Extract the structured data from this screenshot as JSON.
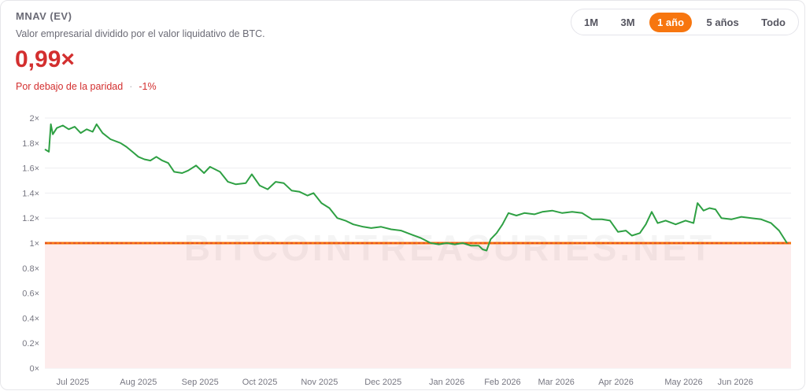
{
  "header": {
    "title": "MNAV (EV)",
    "subtitle": "Valor empresarial dividido por el valor liquidativo de BTC.",
    "value": "0,99×",
    "status_label": "Por debajo de la paridad",
    "separator": "·",
    "status_change": "-1%"
  },
  "range_selector": {
    "options": [
      "1M",
      "3M",
      "1 año",
      "5 años",
      "Todo"
    ],
    "active": "1 año"
  },
  "watermark": "BITCOINTREASURIES.NET",
  "colors": {
    "line": "#2ea043",
    "parity": "#f7760f",
    "parity_dash": "#d32f2f",
    "below_fill": "#fdecec",
    "value": "#d32f2f"
  },
  "chart_data": {
    "type": "line",
    "x_ticks": [
      "Jul 2025",
      "Aug 2025",
      "Sep 2025",
      "Oct 2025",
      "Nov 2025",
      "Dec 2025",
      "Jan 2026",
      "Feb 2026",
      "Mar 2026",
      "Apr 2026",
      "May 2026",
      "Jun 2026"
    ],
    "y_ticks": [
      "0×",
      "0.2×",
      "0.4×",
      "0.6×",
      "0.8×",
      "1×",
      "1.2×",
      "1.4×",
      "1.6×",
      "1.8×",
      "2×"
    ],
    "ylim": [
      0,
      2
    ],
    "x_range": [
      "2025-06-24",
      "2026-07-04"
    ],
    "parity_line": 1,
    "series": [
      {
        "values": [
          [
            "2025-06-24",
            1.75
          ],
          [
            "2025-06-26",
            1.73
          ],
          [
            "2025-06-27",
            1.95
          ],
          [
            "2025-06-28",
            1.87
          ],
          [
            "2025-06-30",
            1.92
          ],
          [
            "2025-07-03",
            1.94
          ],
          [
            "2025-07-06",
            1.91
          ],
          [
            "2025-07-09",
            1.93
          ],
          [
            "2025-07-12",
            1.88
          ],
          [
            "2025-07-15",
            1.91
          ],
          [
            "2025-07-18",
            1.89
          ],
          [
            "2025-07-20",
            1.95
          ],
          [
            "2025-07-23",
            1.88
          ],
          [
            "2025-07-27",
            1.83
          ],
          [
            "2025-08-01",
            1.8
          ],
          [
            "2025-08-04",
            1.77
          ],
          [
            "2025-08-07",
            1.73
          ],
          [
            "2025-08-10",
            1.69
          ],
          [
            "2025-08-13",
            1.67
          ],
          [
            "2025-08-16",
            1.66
          ],
          [
            "2025-08-19",
            1.69
          ],
          [
            "2025-08-22",
            1.66
          ],
          [
            "2025-08-25",
            1.64
          ],
          [
            "2025-08-28",
            1.57
          ],
          [
            "2025-09-01",
            1.56
          ],
          [
            "2025-09-04",
            1.58
          ],
          [
            "2025-09-08",
            1.62
          ],
          [
            "2025-09-12",
            1.56
          ],
          [
            "2025-09-15",
            1.61
          ],
          [
            "2025-09-20",
            1.57
          ],
          [
            "2025-09-24",
            1.49
          ],
          [
            "2025-09-28",
            1.47
          ],
          [
            "2025-10-03",
            1.48
          ],
          [
            "2025-10-06",
            1.55
          ],
          [
            "2025-10-10",
            1.46
          ],
          [
            "2025-10-14",
            1.43
          ],
          [
            "2025-10-18",
            1.49
          ],
          [
            "2025-10-22",
            1.48
          ],
          [
            "2025-10-26",
            1.42
          ],
          [
            "2025-10-30",
            1.41
          ],
          [
            "2025-11-03",
            1.38
          ],
          [
            "2025-11-06",
            1.4
          ],
          [
            "2025-11-10",
            1.32
          ],
          [
            "2025-11-14",
            1.28
          ],
          [
            "2025-11-18",
            1.2
          ],
          [
            "2025-11-22",
            1.18
          ],
          [
            "2025-11-26",
            1.15
          ],
          [
            "2025-12-01",
            1.13
          ],
          [
            "2025-12-05",
            1.12
          ],
          [
            "2025-12-10",
            1.13
          ],
          [
            "2025-12-15",
            1.11
          ],
          [
            "2025-12-20",
            1.1
          ],
          [
            "2025-12-25",
            1.07
          ],
          [
            "2025-12-30",
            1.04
          ],
          [
            "2026-01-04",
            1.0
          ],
          [
            "2026-01-08",
            0.99
          ],
          [
            "2026-01-12",
            1.0
          ],
          [
            "2026-01-16",
            0.99
          ],
          [
            "2026-01-20",
            1.0
          ],
          [
            "2026-01-24",
            0.98
          ],
          [
            "2026-01-28",
            0.98
          ],
          [
            "2026-01-30",
            0.95
          ],
          [
            "2026-02-01",
            0.94
          ],
          [
            "2026-02-03",
            1.03
          ],
          [
            "2026-02-06",
            1.08
          ],
          [
            "2026-02-09",
            1.15
          ],
          [
            "2026-02-12",
            1.24
          ],
          [
            "2026-02-16",
            1.22
          ],
          [
            "2026-02-20",
            1.24
          ],
          [
            "2026-02-25",
            1.23
          ],
          [
            "2026-03-01",
            1.25
          ],
          [
            "2026-03-06",
            1.26
          ],
          [
            "2026-03-11",
            1.24
          ],
          [
            "2026-03-16",
            1.25
          ],
          [
            "2026-03-21",
            1.24
          ],
          [
            "2026-03-26",
            1.19
          ],
          [
            "2026-03-31",
            1.19
          ],
          [
            "2026-04-04",
            1.18
          ],
          [
            "2026-04-08",
            1.09
          ],
          [
            "2026-04-12",
            1.1
          ],
          [
            "2026-04-15",
            1.06
          ],
          [
            "2026-04-19",
            1.08
          ],
          [
            "2026-04-22",
            1.15
          ],
          [
            "2026-04-25",
            1.25
          ],
          [
            "2026-04-28",
            1.16
          ],
          [
            "2026-05-02",
            1.18
          ],
          [
            "2026-05-07",
            1.15
          ],
          [
            "2026-05-12",
            1.18
          ],
          [
            "2026-05-16",
            1.16
          ],
          [
            "2026-05-18",
            1.32
          ],
          [
            "2026-05-21",
            1.26
          ],
          [
            "2026-05-24",
            1.28
          ],
          [
            "2026-05-27",
            1.27
          ],
          [
            "2026-05-30",
            1.2
          ],
          [
            "2026-06-04",
            1.19
          ],
          [
            "2026-06-09",
            1.21
          ],
          [
            "2026-06-14",
            1.2
          ],
          [
            "2026-06-19",
            1.19
          ],
          [
            "2026-06-24",
            1.16
          ],
          [
            "2026-06-28",
            1.1
          ],
          [
            "2026-07-02",
            1.0
          ]
        ]
      }
    ]
  }
}
